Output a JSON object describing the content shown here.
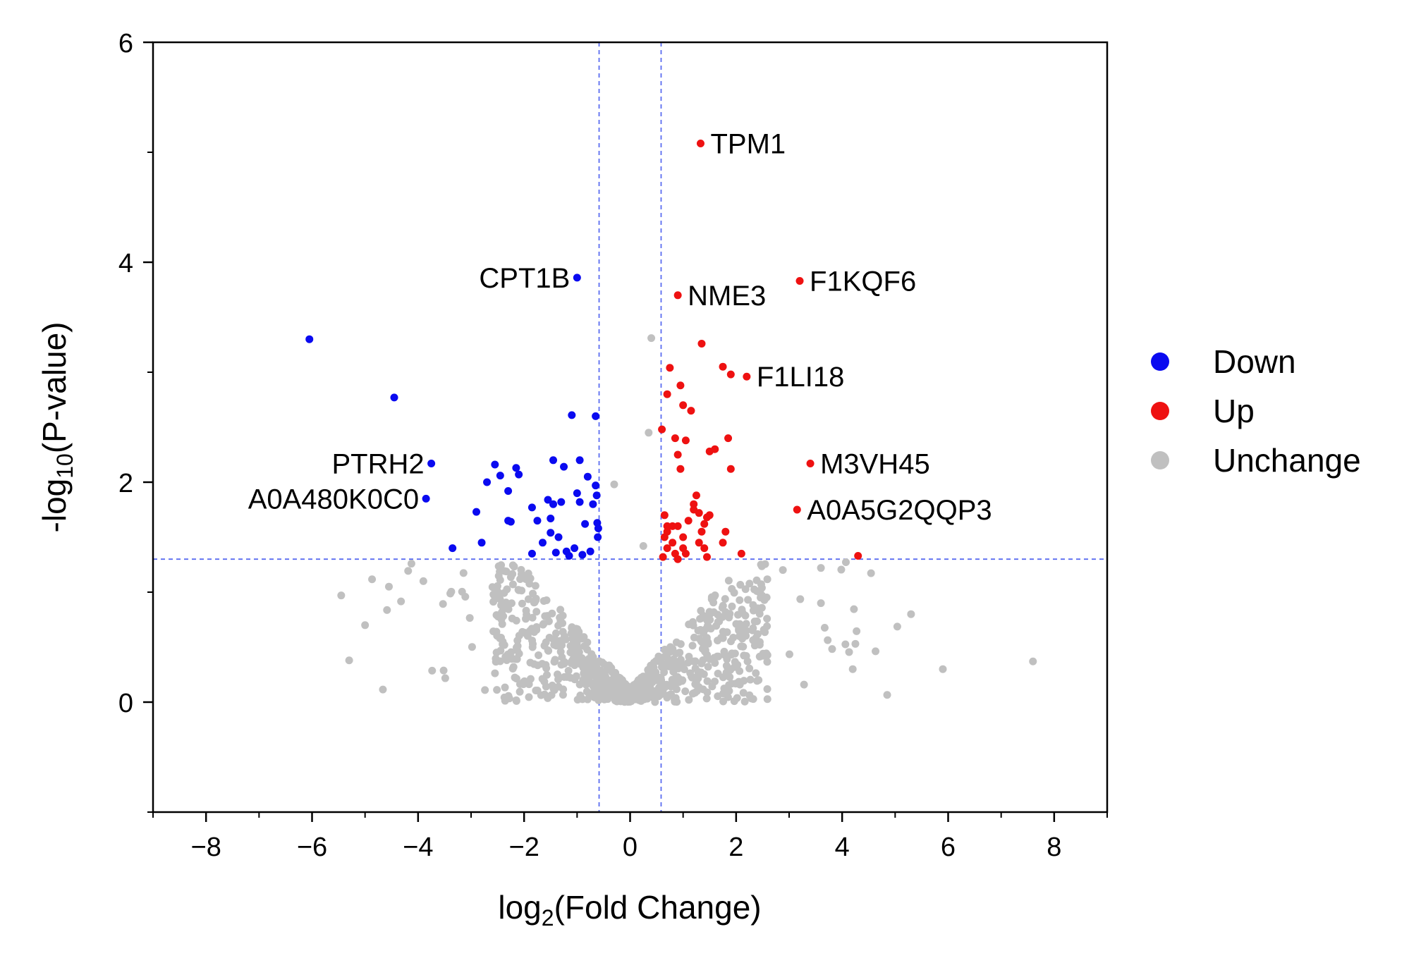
{
  "chart_data": {
    "type": "scatter",
    "title": "",
    "xlabel": "log",
    "xlabel_sub": "2",
    "xlabel_rest": "(Fold Change)",
    "ylabel_pre": "-log",
    "ylabel_sub": "10",
    "ylabel_rest": "(P-value)",
    "xlim": [
      -9,
      9
    ],
    "ylim": [
      -1,
      6
    ],
    "xticks": [
      -8,
      -6,
      -4,
      -2,
      0,
      2,
      4,
      6,
      8
    ],
    "xtick_labels": [
      "−8",
      "−6",
      "−4",
      "−2",
      "0",
      "2",
      "4",
      "6",
      "8"
    ],
    "yticks": [
      0,
      2,
      4,
      6
    ],
    "ytick_labels": [
      "0",
      "2",
      "4",
      "6"
    ],
    "thresholds": {
      "fc_low": -0.585,
      "fc_high": 0.585,
      "p": 1.3
    },
    "colors": {
      "Down": "#0a0af0",
      "Up": "#ee1111",
      "Unchange": "#c0c0c0",
      "threshold": "#5a6cf0"
    },
    "legend": [
      {
        "name": "Down",
        "color": "#0a0af0"
      },
      {
        "name": "Up",
        "color": "#ee1111"
      },
      {
        "name": "Unchange",
        "color": "#c0c0c0"
      }
    ],
    "series": [
      {
        "name": "Down",
        "points": [
          [
            -6.05,
            3.3
          ],
          [
            -4.45,
            2.77
          ],
          [
            -3.75,
            2.17
          ],
          [
            -3.85,
            1.85
          ],
          [
            -3.35,
            1.4
          ],
          [
            -2.9,
            1.73
          ],
          [
            -2.8,
            1.45
          ],
          [
            -2.7,
            2.0
          ],
          [
            -2.55,
            2.16
          ],
          [
            -2.45,
            2.06
          ],
          [
            -2.3,
            1.92
          ],
          [
            -2.3,
            1.65
          ],
          [
            -2.25,
            1.64
          ],
          [
            -2.15,
            2.13
          ],
          [
            -2.1,
            2.07
          ],
          [
            -1.85,
            1.77
          ],
          [
            -1.85,
            1.35
          ],
          [
            -1.75,
            1.65
          ],
          [
            -1.65,
            1.45
          ],
          [
            -1.55,
            1.84
          ],
          [
            -1.5,
            1.67
          ],
          [
            -1.5,
            1.54
          ],
          [
            -1.45,
            2.2
          ],
          [
            -1.45,
            1.8
          ],
          [
            -1.4,
            1.36
          ],
          [
            -1.35,
            1.5
          ],
          [
            -1.3,
            1.82
          ],
          [
            -1.25,
            2.14
          ],
          [
            -1.2,
            1.37
          ],
          [
            -1.15,
            1.33
          ],
          [
            -1.1,
            2.61
          ],
          [
            -1.05,
            1.4
          ],
          [
            -1.0,
            1.9
          ],
          [
            -0.95,
            1.82
          ],
          [
            -0.95,
            2.2
          ],
          [
            -0.9,
            1.34
          ],
          [
            -0.85,
            1.62
          ],
          [
            -0.8,
            2.05
          ],
          [
            -0.75,
            1.37
          ],
          [
            -0.7,
            1.8
          ],
          [
            -0.65,
            2.6
          ],
          [
            -0.65,
            1.97
          ],
          [
            -0.63,
            1.88
          ],
          [
            -0.62,
            1.63
          ],
          [
            -0.61,
            1.5
          ],
          [
            -0.6,
            1.58
          ],
          [
            -1.0,
            3.86
          ]
        ]
      },
      {
        "name": "Up",
        "points": [
          [
            1.33,
            5.08
          ],
          [
            0.9,
            3.7
          ],
          [
            3.2,
            3.83
          ],
          [
            1.35,
            3.26
          ],
          [
            1.75,
            3.05
          ],
          [
            1.9,
            2.98
          ],
          [
            2.2,
            2.96
          ],
          [
            0.75,
            3.04
          ],
          [
            0.95,
            2.88
          ],
          [
            0.7,
            2.8
          ],
          [
            1.0,
            2.7
          ],
          [
            1.15,
            2.65
          ],
          [
            0.6,
            2.48
          ],
          [
            0.85,
            2.4
          ],
          [
            1.05,
            2.38
          ],
          [
            1.5,
            2.28
          ],
          [
            1.6,
            2.3
          ],
          [
            1.85,
            2.4
          ],
          [
            1.9,
            2.12
          ],
          [
            0.9,
            2.25
          ],
          [
            0.95,
            2.12
          ],
          [
            3.4,
            2.17
          ],
          [
            3.15,
            1.75
          ],
          [
            4.3,
            1.33
          ],
          [
            0.65,
            1.7
          ],
          [
            0.7,
            1.6
          ],
          [
            0.8,
            1.6
          ],
          [
            0.9,
            1.6
          ],
          [
            1.0,
            1.5
          ],
          [
            0.65,
            1.5
          ],
          [
            0.7,
            1.4
          ],
          [
            0.8,
            1.45
          ],
          [
            0.85,
            1.35
          ],
          [
            0.9,
            1.3
          ],
          [
            1.0,
            1.4
          ],
          [
            1.05,
            1.35
          ],
          [
            1.1,
            1.65
          ],
          [
            1.2,
            1.8
          ],
          [
            1.25,
            1.88
          ],
          [
            1.3,
            1.72
          ],
          [
            1.35,
            1.55
          ],
          [
            1.4,
            1.62
          ],
          [
            1.45,
            1.68
          ],
          [
            1.5,
            1.7
          ],
          [
            1.4,
            1.4
          ],
          [
            1.45,
            1.32
          ],
          [
            1.3,
            1.45
          ],
          [
            1.75,
            1.45
          ],
          [
            1.8,
            1.55
          ],
          [
            2.1,
            1.35
          ],
          [
            1.2,
            1.75
          ],
          [
            0.62,
            1.32
          ],
          [
            0.7,
            1.55
          ]
        ]
      }
    ],
    "annotations": [
      {
        "label": "TPM1",
        "x": 1.33,
        "y": 5.08,
        "side": "right"
      },
      {
        "label": "CPT1B",
        "x": -1.0,
        "y": 3.86,
        "side": "left"
      },
      {
        "label": "NME3",
        "x": 0.9,
        "y": 3.7,
        "side": "right"
      },
      {
        "label": "F1KQF6",
        "x": 3.2,
        "y": 3.83,
        "side": "right"
      },
      {
        "label": "F1LI18",
        "x": 2.2,
        "y": 2.96,
        "side": "right"
      },
      {
        "label": "PTRH2",
        "x": -3.75,
        "y": 2.17,
        "side": "left"
      },
      {
        "label": "A0A480K0C0",
        "x": -3.85,
        "y": 1.85,
        "side": "left"
      },
      {
        "label": "M3VH45",
        "x": 3.4,
        "y": 2.17,
        "side": "right"
      },
      {
        "label": "A0A5G2QQP3",
        "x": 3.15,
        "y": 1.75,
        "side": "right"
      }
    ]
  }
}
